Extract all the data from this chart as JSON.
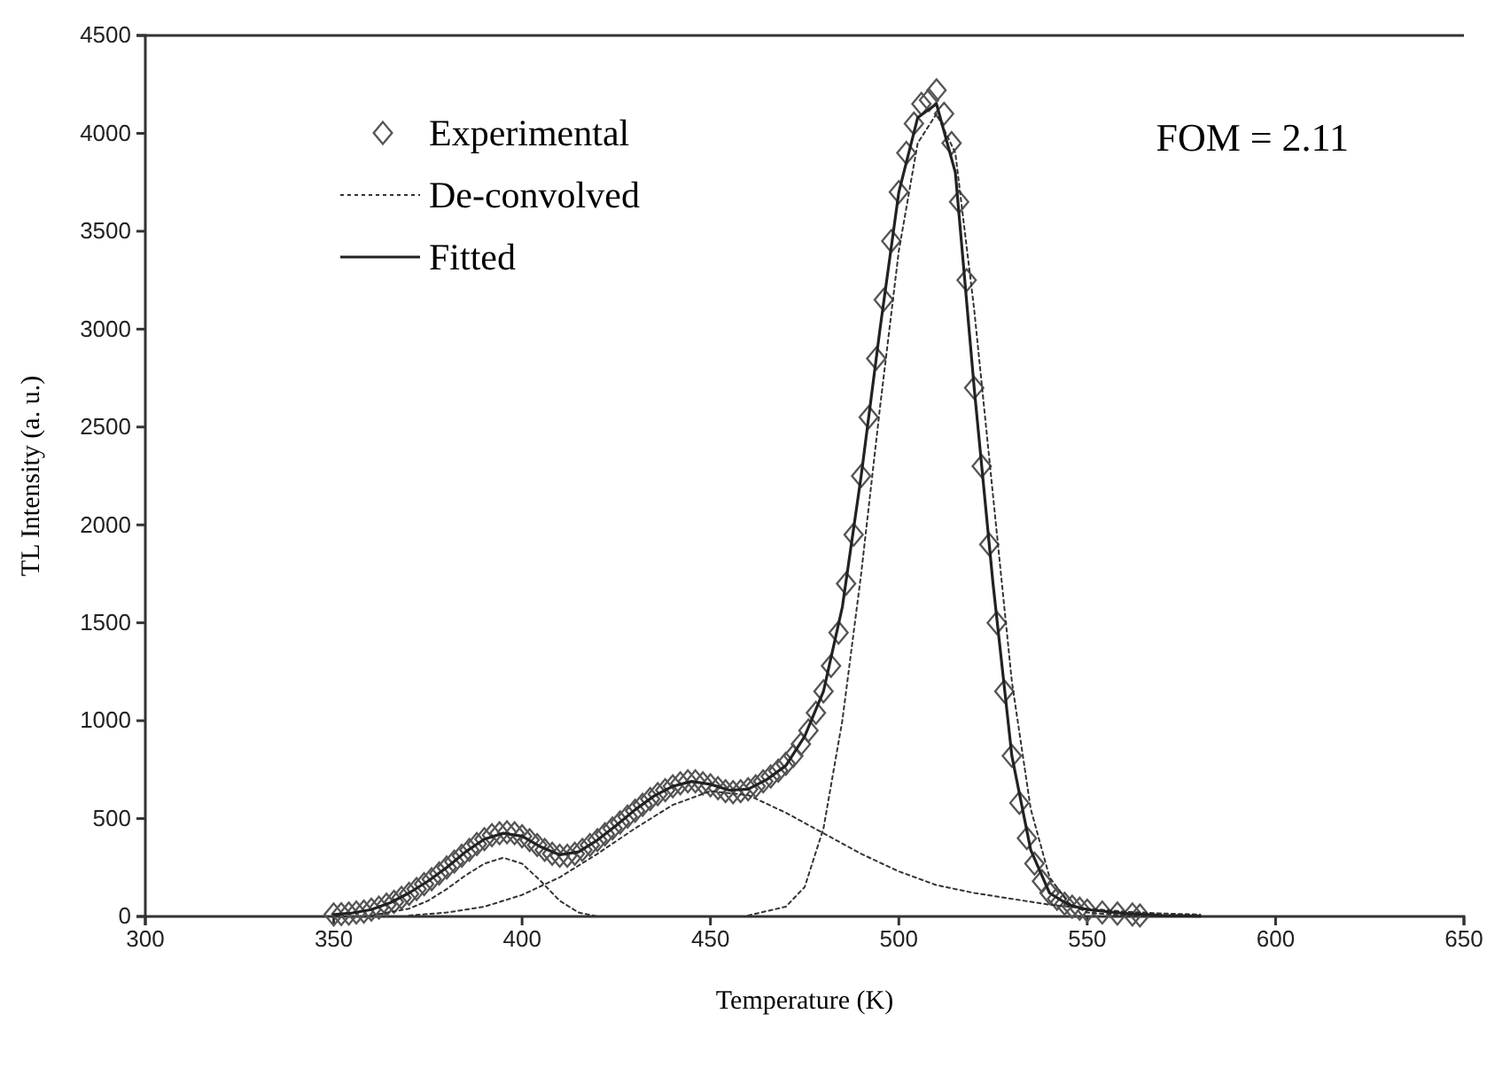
{
  "chart_data": {
    "type": "scatter",
    "xlabel": "Temperature (K)",
    "ylabel": "TL Intensity (a. u.)",
    "annotations": [
      "FOM = 2.11"
    ],
    "xlim": [
      300,
      650
    ],
    "xticks": [
      300,
      350,
      400,
      450,
      500,
      550,
      600,
      650
    ],
    "ylim": [
      0,
      4500
    ],
    "yticks": [
      0,
      500,
      1000,
      1500,
      2000,
      2500,
      3000,
      3500,
      4000,
      4500
    ],
    "grid": false,
    "legend": "top left",
    "series": [
      {
        "name": "Experimental",
        "marker": "diamond",
        "color": "#555555",
        "x": [
          350,
          352,
          354,
          356,
          358,
          360,
          362,
          364,
          366,
          368,
          370,
          372,
          374,
          376,
          378,
          380,
          382,
          384,
          386,
          388,
          390,
          392,
          394,
          396,
          398,
          400,
          402,
          404,
          406,
          408,
          410,
          412,
          414,
          416,
          418,
          420,
          422,
          424,
          426,
          428,
          430,
          432,
          434,
          436,
          438,
          440,
          442,
          444,
          446,
          448,
          450,
          452,
          454,
          456,
          458,
          460,
          462,
          464,
          466,
          468,
          470,
          472,
          474,
          476,
          478,
          480,
          482,
          484,
          486,
          488,
          490,
          492,
          494,
          496,
          498,
          500,
          502,
          504,
          506,
          508,
          510,
          512,
          514,
          516,
          518,
          520,
          522,
          524,
          526,
          528,
          530,
          532,
          534,
          536,
          538,
          540,
          542,
          544,
          546,
          548,
          550,
          554,
          558,
          562,
          564
        ],
        "values": [
          10,
          12,
          15,
          20,
          25,
          35,
          45,
          60,
          75,
          95,
          115,
          140,
          165,
          190,
          220,
          250,
          280,
          310,
          340,
          370,
          395,
          415,
          425,
          430,
          425,
          410,
          390,
          365,
          340,
          320,
          310,
          310,
          320,
          340,
          365,
          390,
          420,
          450,
          480,
          510,
          540,
          570,
          600,
          625,
          645,
          665,
          680,
          690,
          690,
          680,
          670,
          655,
          640,
          635,
          640,
          650,
          665,
          690,
          715,
          745,
          780,
          820,
          880,
          950,
          1040,
          1150,
          1280,
          1450,
          1700,
          1950,
          2250,
          2550,
          2850,
          3150,
          3450,
          3700,
          3900,
          4050,
          4150,
          4170,
          4220,
          4100,
          3950,
          3650,
          3250,
          2700,
          2300,
          1900,
          1500,
          1150,
          820,
          580,
          400,
          270,
          180,
          120,
          90,
          65,
          50,
          40,
          30,
          20,
          15,
          10,
          5
        ]
      },
      {
        "name": "De-convolved",
        "type": "line",
        "line_style": "dotted",
        "color": "#333333",
        "x": [
          360,
          370,
          375,
          380,
          385,
          390,
          395,
          400,
          405,
          410,
          415,
          420
        ],
        "values": [
          5,
          40,
          80,
          140,
          210,
          270,
          300,
          270,
          180,
          80,
          20,
          0
        ]
      },
      {
        "type": "line",
        "line_style": "dotted",
        "color": "#333333",
        "x": [
          370,
          380,
          390,
          400,
          410,
          420,
          430,
          440,
          450,
          460,
          470,
          480,
          490,
          500,
          510,
          520,
          530,
          540,
          550,
          560,
          570,
          580
        ],
        "values": [
          5,
          20,
          50,
          110,
          200,
          320,
          450,
          570,
          640,
          620,
          530,
          425,
          320,
          230,
          160,
          120,
          90,
          60,
          40,
          25,
          15,
          10
        ]
      },
      {
        "type": "line",
        "line_style": "dotted",
        "color": "#333333",
        "x": [
          460,
          470,
          475,
          480,
          485,
          490,
          495,
          500,
          505,
          510,
          515,
          520,
          525,
          530,
          535,
          540,
          545,
          550,
          560,
          580
        ],
        "values": [
          5,
          50,
          150,
          450,
          1000,
          1750,
          2600,
          3400,
          3950,
          4100,
          3900,
          3100,
          2150,
          1200,
          550,
          200,
          70,
          20,
          5,
          0
        ]
      },
      {
        "name": "Fitted",
        "type": "line",
        "line_style": "solid",
        "color": "#222222",
        "x": [
          350,
          355,
          360,
          365,
          370,
          375,
          380,
          385,
          390,
          395,
          400,
          405,
          410,
          415,
          420,
          425,
          430,
          435,
          440,
          445,
          450,
          455,
          460,
          465,
          470,
          475,
          480,
          485,
          490,
          495,
          500,
          505,
          510,
          515,
          520,
          525,
          530,
          535,
          540,
          545,
          550,
          560,
          570,
          580
        ],
        "values": [
          10,
          18,
          35,
          70,
          120,
          180,
          250,
          330,
          395,
          425,
          410,
          355,
          315,
          330,
          390,
          465,
          545,
          615,
          665,
          690,
          675,
          645,
          650,
          700,
          770,
          920,
          1150,
          1580,
          2250,
          3000,
          3700,
          4080,
          4150,
          3800,
          2700,
          1700,
          820,
          340,
          120,
          60,
          35,
          15,
          5,
          2
        ]
      }
    ]
  }
}
